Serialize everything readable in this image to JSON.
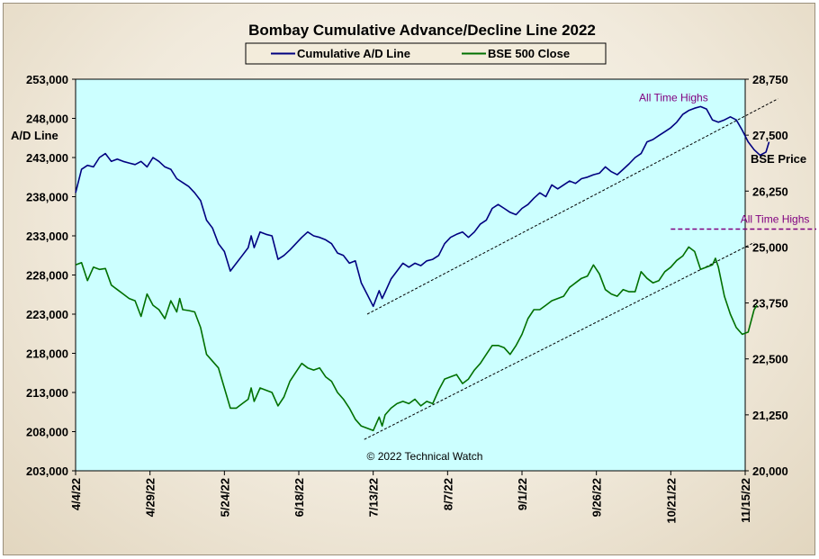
{
  "chart_data": {
    "type": "line",
    "title": "Bombay Cumulative Advance/Decline Line 2022",
    "y_left_label": "A/D Line",
    "y_right_label": "BSE Price",
    "y_left_range": [
      203000,
      253000
    ],
    "y_right_range": [
      20000,
      28750
    ],
    "y_left_ticks": [
      "203,000",
      "208,000",
      "213,000",
      "218,000",
      "223,000",
      "228,000",
      "233,000",
      "238,000",
      "243,000",
      "248,000",
      "253,000"
    ],
    "y_right_ticks": [
      "20,000",
      "21,250",
      "22,500",
      "23,750",
      "25,000",
      "26,250",
      "27,500",
      "28,750"
    ],
    "x_ticks": [
      "4/4/22",
      "4/29/22",
      "5/24/22",
      "6/18/22",
      "7/13/22",
      "8/7/22",
      "9/1/22",
      "9/26/22",
      "10/21/22",
      "11/15/22"
    ],
    "x_range_days": [
      0,
      225
    ],
    "legend_position": "top-center",
    "grid": false,
    "copyright": "© 2022 Technical Watch",
    "series": [
      {
        "name": "Cumulative A/D Line",
        "axis": "left",
        "color": "#000080",
        "points": [
          [
            0,
            238500
          ],
          [
            2,
            241500
          ],
          [
            4,
            242000
          ],
          [
            6,
            241800
          ],
          [
            8,
            243000
          ],
          [
            10,
            243500
          ],
          [
            12,
            242500
          ],
          [
            14,
            242800
          ],
          [
            16,
            242500
          ],
          [
            18,
            242300
          ],
          [
            20,
            242100
          ],
          [
            22,
            242500
          ],
          [
            24,
            241800
          ],
          [
            26,
            243000
          ],
          [
            28,
            242500
          ],
          [
            30,
            241800
          ],
          [
            32,
            241500
          ],
          [
            34,
            240300
          ],
          [
            36,
            239800
          ],
          [
            38,
            239300
          ],
          [
            40,
            238500
          ],
          [
            42,
            237500
          ],
          [
            44,
            235000
          ],
          [
            46,
            234000
          ],
          [
            48,
            232000
          ],
          [
            50,
            231000
          ],
          [
            52,
            228500
          ],
          [
            54,
            229500
          ],
          [
            56,
            230500
          ],
          [
            58,
            231500
          ],
          [
            59,
            233000
          ],
          [
            60,
            231500
          ],
          [
            62,
            233500
          ],
          [
            64,
            233200
          ],
          [
            66,
            233000
          ],
          [
            68,
            230000
          ],
          [
            70,
            230500
          ],
          [
            72,
            231200
          ],
          [
            74,
            232000
          ],
          [
            76,
            232800
          ],
          [
            78,
            233500
          ],
          [
            80,
            233000
          ],
          [
            82,
            232800
          ],
          [
            84,
            232500
          ],
          [
            86,
            232000
          ],
          [
            88,
            230800
          ],
          [
            90,
            230500
          ],
          [
            92,
            229500
          ],
          [
            94,
            229800
          ],
          [
            96,
            227000
          ],
          [
            98,
            225500
          ],
          [
            100,
            224000
          ],
          [
            102,
            226000
          ],
          [
            103,
            225000
          ],
          [
            104,
            225800
          ],
          [
            106,
            227500
          ],
          [
            108,
            228500
          ],
          [
            110,
            229500
          ],
          [
            112,
            229000
          ],
          [
            114,
            229500
          ],
          [
            116,
            229200
          ],
          [
            118,
            229800
          ],
          [
            120,
            230000
          ],
          [
            122,
            230500
          ],
          [
            124,
            232000
          ],
          [
            126,
            232800
          ],
          [
            128,
            233200
          ],
          [
            130,
            233500
          ],
          [
            132,
            232800
          ],
          [
            134,
            233500
          ],
          [
            136,
            234500
          ],
          [
            138,
            235000
          ],
          [
            140,
            236500
          ],
          [
            142,
            237000
          ],
          [
            144,
            236500
          ],
          [
            146,
            236000
          ],
          [
            148,
            235700
          ],
          [
            150,
            236500
          ],
          [
            152,
            237000
          ],
          [
            154,
            237800
          ],
          [
            156,
            238500
          ],
          [
            158,
            238000
          ],
          [
            160,
            239500
          ],
          [
            162,
            239000
          ],
          [
            164,
            239500
          ],
          [
            166,
            240000
          ],
          [
            168,
            239700
          ],
          [
            170,
            240300
          ],
          [
            172,
            240500
          ],
          [
            174,
            240800
          ],
          [
            176,
            241000
          ],
          [
            178,
            241800
          ],
          [
            180,
            241200
          ],
          [
            182,
            240800
          ],
          [
            184,
            241500
          ],
          [
            186,
            242200
          ],
          [
            188,
            243000
          ],
          [
            190,
            243500
          ],
          [
            192,
            245000
          ],
          [
            194,
            245300
          ],
          [
            196,
            245800
          ],
          [
            198,
            246300
          ],
          [
            200,
            246800
          ],
          [
            202,
            247500
          ],
          [
            204,
            248500
          ],
          [
            206,
            249000
          ],
          [
            208,
            249300
          ],
          [
            210,
            249500
          ],
          [
            212,
            249200
          ],
          [
            214,
            247800
          ],
          [
            216,
            247500
          ],
          [
            218,
            247800
          ],
          [
            220,
            248200
          ],
          [
            222,
            247800
          ],
          [
            224,
            246500
          ],
          [
            226,
            245000
          ],
          [
            228,
            244000
          ],
          [
            230,
            243300
          ],
          [
            232,
            243700
          ],
          [
            233,
            245000
          ]
        ]
      },
      {
        "name": "BSE 500 Close",
        "axis": "right",
        "color": "#007000",
        "points": [
          [
            0,
            24600
          ],
          [
            2,
            24650
          ],
          [
            4,
            24250
          ],
          [
            6,
            24550
          ],
          [
            8,
            24500
          ],
          [
            10,
            24520
          ],
          [
            12,
            24150
          ],
          [
            14,
            24050
          ],
          [
            16,
            23950
          ],
          [
            18,
            23850
          ],
          [
            20,
            23800
          ],
          [
            22,
            23450
          ],
          [
            24,
            23950
          ],
          [
            26,
            23700
          ],
          [
            28,
            23600
          ],
          [
            30,
            23400
          ],
          [
            32,
            23800
          ],
          [
            34,
            23550
          ],
          [
            35,
            23850
          ],
          [
            36,
            23600
          ],
          [
            38,
            23580
          ],
          [
            40,
            23550
          ],
          [
            42,
            23200
          ],
          [
            44,
            22600
          ],
          [
            46,
            22450
          ],
          [
            48,
            22300
          ],
          [
            50,
            21850
          ],
          [
            52,
            21400
          ],
          [
            54,
            21400
          ],
          [
            56,
            21500
          ],
          [
            58,
            21600
          ],
          [
            59,
            21850
          ],
          [
            60,
            21550
          ],
          [
            62,
            21850
          ],
          [
            64,
            21800
          ],
          [
            66,
            21750
          ],
          [
            68,
            21450
          ],
          [
            70,
            21650
          ],
          [
            72,
            22000
          ],
          [
            74,
            22200
          ],
          [
            76,
            22400
          ],
          [
            78,
            22300
          ],
          [
            80,
            22250
          ],
          [
            82,
            22300
          ],
          [
            84,
            22100
          ],
          [
            86,
            22000
          ],
          [
            88,
            21750
          ],
          [
            90,
            21600
          ],
          [
            92,
            21400
          ],
          [
            94,
            21150
          ],
          [
            96,
            21000
          ],
          [
            98,
            20950
          ],
          [
            100,
            20900
          ],
          [
            102,
            21200
          ],
          [
            103,
            21000
          ],
          [
            104,
            21250
          ],
          [
            106,
            21400
          ],
          [
            108,
            21500
          ],
          [
            110,
            21550
          ],
          [
            112,
            21500
          ],
          [
            114,
            21600
          ],
          [
            116,
            21450
          ],
          [
            118,
            21550
          ],
          [
            120,
            21500
          ],
          [
            122,
            21800
          ],
          [
            124,
            22050
          ],
          [
            126,
            22100
          ],
          [
            128,
            22150
          ],
          [
            130,
            21950
          ],
          [
            132,
            22050
          ],
          [
            134,
            22250
          ],
          [
            136,
            22400
          ],
          [
            138,
            22600
          ],
          [
            140,
            22800
          ],
          [
            142,
            22800
          ],
          [
            144,
            22750
          ],
          [
            146,
            22600
          ],
          [
            148,
            22800
          ],
          [
            150,
            23050
          ],
          [
            152,
            23400
          ],
          [
            154,
            23600
          ],
          [
            156,
            23600
          ],
          [
            158,
            23700
          ],
          [
            160,
            23800
          ],
          [
            162,
            23850
          ],
          [
            164,
            23900
          ],
          [
            166,
            24100
          ],
          [
            168,
            24200
          ],
          [
            170,
            24300
          ],
          [
            172,
            24350
          ],
          [
            174,
            24600
          ],
          [
            176,
            24400
          ],
          [
            178,
            24050
          ],
          [
            180,
            23950
          ],
          [
            182,
            23900
          ],
          [
            184,
            24050
          ],
          [
            186,
            24000
          ],
          [
            188,
            24000
          ],
          [
            190,
            24450
          ],
          [
            192,
            24300
          ],
          [
            194,
            24200
          ],
          [
            196,
            24250
          ],
          [
            198,
            24450
          ],
          [
            200,
            24550
          ],
          [
            202,
            24700
          ],
          [
            204,
            24800
          ],
          [
            206,
            25000
          ],
          [
            208,
            24900
          ],
          [
            210,
            24500
          ],
          [
            212,
            24550
          ],
          [
            214,
            24600
          ],
          [
            215,
            24750
          ],
          [
            216,
            24550
          ],
          [
            218,
            23900
          ],
          [
            220,
            23500
          ],
          [
            222,
            23200
          ],
          [
            224,
            23050
          ],
          [
            226,
            23100
          ],
          [
            228,
            23600
          ],
          [
            229,
            23700
          ]
        ]
      }
    ],
    "trendlines": [
      {
        "series": "Cumulative A/D Line",
        "style": "dashed",
        "from": [
          98,
          223000
        ],
        "to": [
          236,
          250500
        ]
      },
      {
        "series": "BSE 500 Close",
        "style": "dashed",
        "from": [
          97,
          20700
        ],
        "to": [
          228,
          25100
        ]
      }
    ],
    "annotations": [
      {
        "text": "All Time Highs",
        "series": "Cumulative A/D Line"
      },
      {
        "text": "All Time Highs",
        "series": "BSE 500 Close",
        "level_line": 25400,
        "line_from_day": 200,
        "line_to_day": 270
      }
    ]
  }
}
